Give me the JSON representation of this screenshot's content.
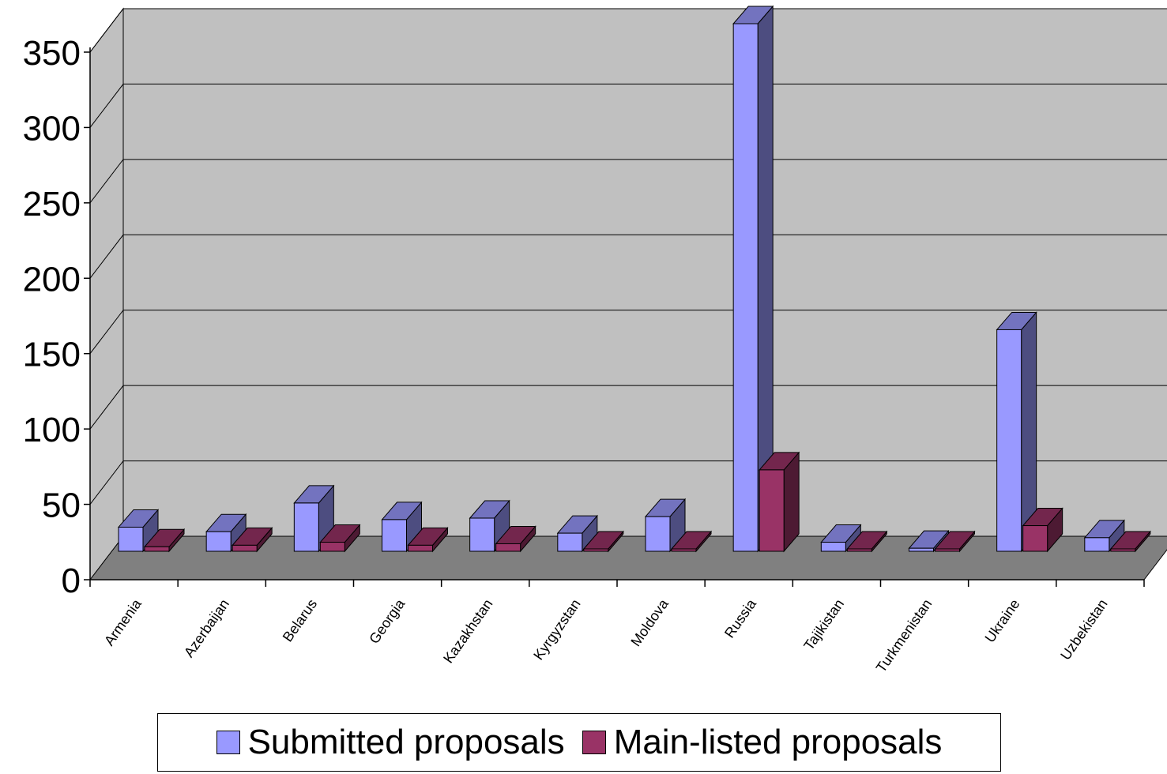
{
  "chart_data": {
    "type": "bar",
    "style": "3d-clustered-column",
    "categories": [
      "Armenia",
      "Azerbaijan",
      "Belarus",
      "Georgia",
      "Kazakhstan",
      "Kyrgyzstan",
      "Moldova",
      "Russia",
      "Tajikistan",
      "Turkmenistan",
      "Ukraine",
      "Uzbekistan"
    ],
    "series": [
      {
        "name": "Submitted proposals",
        "color": "#9999ff",
        "values": [
          16,
          13,
          32,
          21,
          22,
          12,
          23,
          350,
          6,
          2,
          147,
          9
        ]
      },
      {
        "name": "Main-listed proposals",
        "color": "#993366",
        "values": [
          3,
          4,
          6,
          4,
          5,
          1,
          1,
          54,
          0,
          0,
          17,
          1
        ]
      }
    ],
    "y_ticks": [
      "0",
      "50",
      "100",
      "150",
      "200",
      "250",
      "300",
      "350"
    ],
    "ylim": [
      0,
      350
    ],
    "grid": true,
    "legend_position": "bottom",
    "wall_color": "#c0c0c0",
    "floor_color": "#808080"
  }
}
